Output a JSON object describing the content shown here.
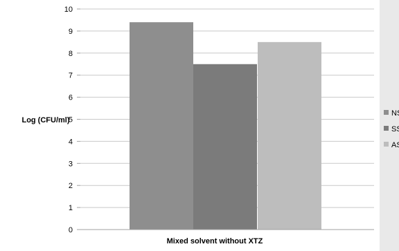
{
  "chart_data": {
    "type": "bar",
    "categories": [
      "Mixed solvent without XTZ"
    ],
    "series": [
      {
        "name": "NS",
        "values": [
          9.4
        ],
        "color": "#8e8e8e"
      },
      {
        "name": "SS",
        "values": [
          7.5
        ],
        "color": "#7b7b7b"
      },
      {
        "name": "AS",
        "values": [
          8.5
        ],
        "color": "#bdbdbd"
      }
    ],
    "xlabel": "Mixed solvent without XTZ",
    "ylabel": "Log (CFU/ml)",
    "ylim": [
      0,
      10
    ],
    "yticks": [
      0,
      1,
      2,
      3,
      4,
      5,
      6,
      7,
      8,
      9,
      10
    ],
    "grid": true,
    "legend_position": "right",
    "colors": {
      "background": "#e9e9e9",
      "plot_background": "#ffffff",
      "gridline": "#c8c8c8",
      "axis": "#a0a0a0"
    }
  }
}
